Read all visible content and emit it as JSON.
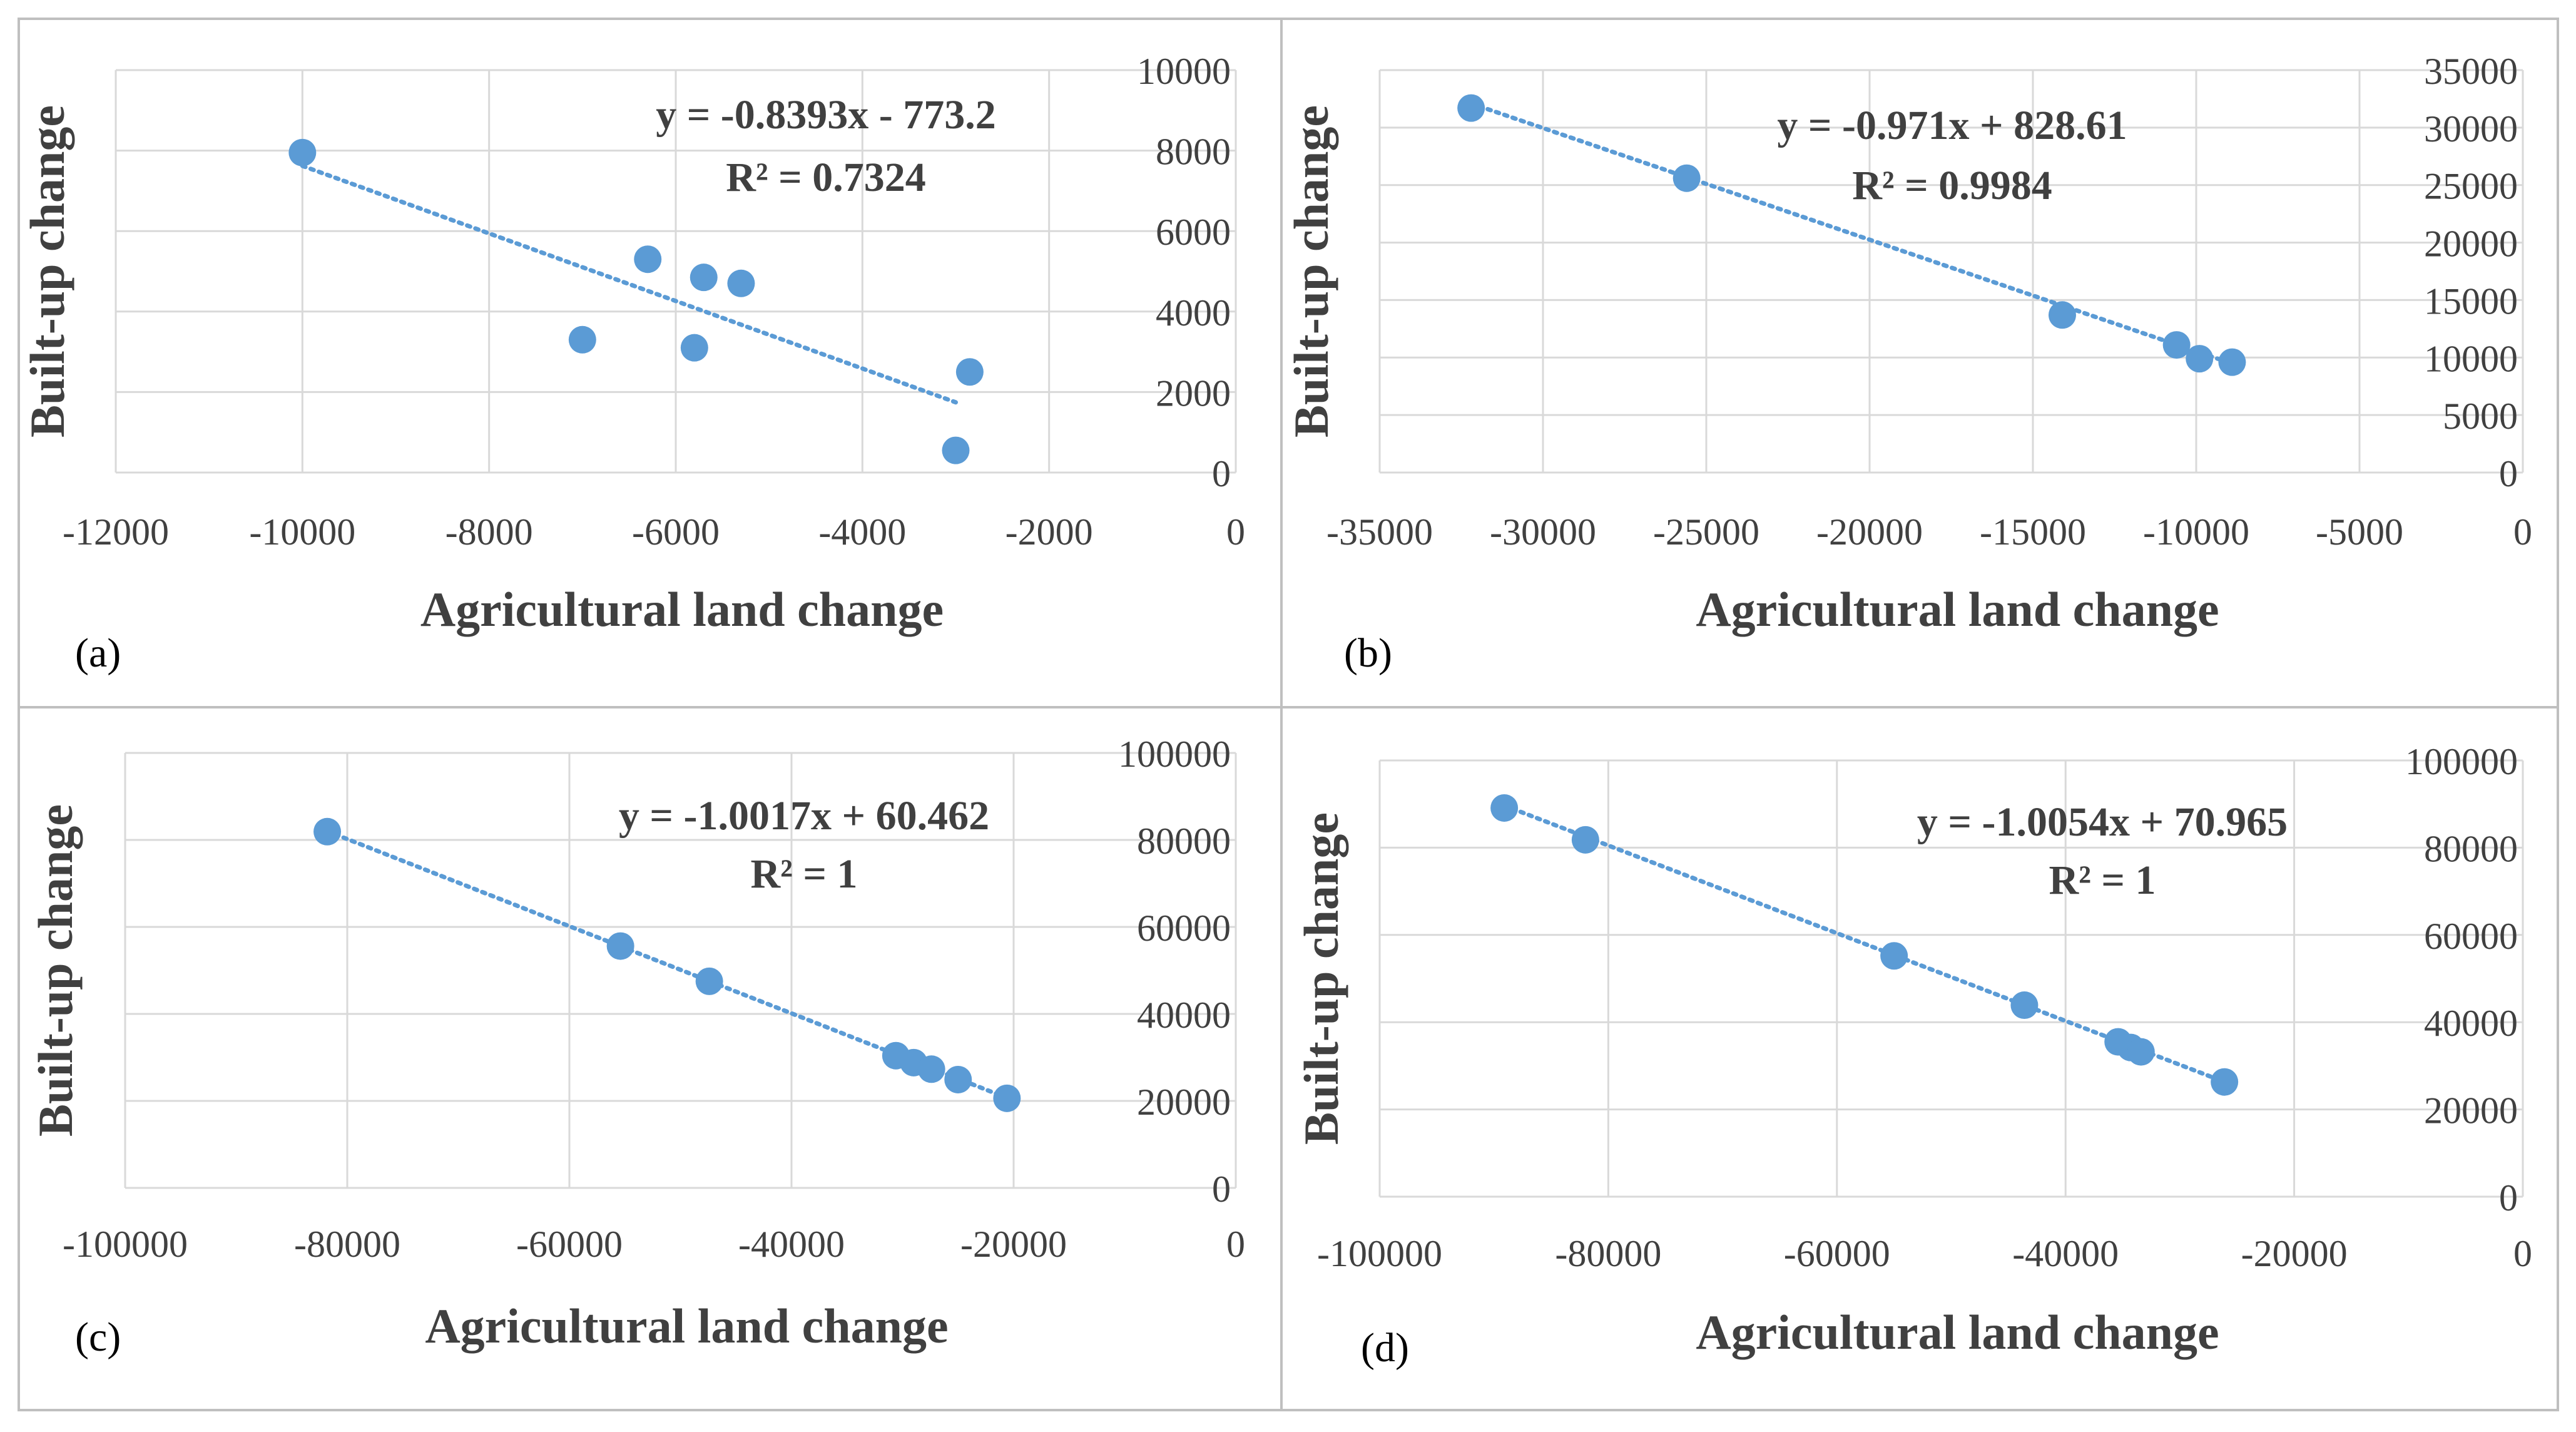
{
  "colors": {
    "marker": "#5b9bd5",
    "trendline": "#5b9bd5",
    "grid": "#d9d9d9",
    "panel_border": "#bfbfbf",
    "text": "#404040"
  },
  "chart_data": [
    {
      "type": "scatter",
      "panel_label": "(a)",
      "xlabel": "Agricultural land change",
      "ylabel": "Built-up change",
      "xlim": [
        -12000,
        0
      ],
      "ylim": [
        0,
        10000
      ],
      "xticks": [
        -12000,
        -10000,
        -8000,
        -6000,
        -4000,
        -2000,
        0
      ],
      "yticks": [
        0,
        2000,
        4000,
        6000,
        8000,
        10000
      ],
      "xtick_labels": [
        "-12000",
        "-10000",
        "-8000",
        "-6000",
        "-4000",
        "-2000",
        "0"
      ],
      "ytick_labels": [
        "0",
        "2000",
        "4000",
        "6000",
        "8000",
        "10000"
      ],
      "x": [
        -10000,
        -7000,
        -6300,
        -5800,
        -5700,
        -5300,
        -3000,
        -2850
      ],
      "y": [
        7950,
        3300,
        5300,
        3100,
        4850,
        4700,
        550,
        2500
      ],
      "trendline": {
        "slope": -0.8393,
        "intercept": -773.2,
        "x_range": [
          -10000,
          -3000
        ]
      },
      "equation": "y = -0.8393x - 773.2",
      "r_squared": "R² = 0.7324"
    },
    {
      "type": "scatter",
      "panel_label": "(b)",
      "xlabel": "Agricultural land change",
      "ylabel": "Built-up change",
      "xlim": [
        -35000,
        0
      ],
      "ylim": [
        0,
        35000
      ],
      "xticks": [
        -35000,
        -30000,
        -25000,
        -20000,
        -15000,
        -10000,
        -5000,
        0
      ],
      "yticks": [
        0,
        5000,
        10000,
        15000,
        20000,
        25000,
        30000,
        35000
      ],
      "xtick_labels": [
        "-35000",
        "-30000",
        "-25000",
        "-20000",
        "-15000",
        "-10000",
        "-5000",
        "0"
      ],
      "ytick_labels": [
        "0",
        "5000",
        "10000",
        "15000",
        "20000",
        "25000",
        "30000",
        "35000"
      ],
      "x": [
        -32200,
        -25600,
        -14100,
        -10600,
        -9900,
        -8900
      ],
      "y": [
        31700,
        25600,
        13700,
        11100,
        9900,
        9600
      ],
      "trendline": {
        "slope": -0.971,
        "intercept": 828.61,
        "x_range": [
          -32200,
          -8900
        ]
      },
      "equation": "y = -0.971x + 828.61",
      "r_squared": "R² = 0.9984"
    },
    {
      "type": "scatter",
      "panel_label": "(c)",
      "xlabel": "Agricultural land change",
      "ylabel": "Built-up change",
      "xlim": [
        -100000,
        0
      ],
      "ylim": [
        0,
        100000
      ],
      "xticks": [
        -100000,
        -80000,
        -60000,
        -40000,
        -20000,
        0
      ],
      "yticks": [
        0,
        20000,
        40000,
        60000,
        80000,
        100000
      ],
      "xtick_labels": [
        "-100000",
        "-80000",
        "-60000",
        "-40000",
        "-20000",
        "0"
      ],
      "ytick_labels": [
        "0",
        "20000",
        "40000",
        "60000",
        "80000",
        "100000"
      ],
      "x": [
        -81800,
        -55400,
        -47400,
        -30600,
        -29000,
        -27400,
        -25000,
        -20600
      ],
      "y": [
        81900,
        55600,
        47500,
        30400,
        28800,
        27300,
        24900,
        20600
      ],
      "trendline": {
        "slope": -1.0017,
        "intercept": 60.462,
        "x_range": [
          -81800,
          -20600
        ]
      },
      "equation": "y = -1.0017x + 60.462",
      "r_squared": "R² = 1"
    },
    {
      "type": "scatter",
      "panel_label": "(d)",
      "xlabel": "Agricultural land change",
      "ylabel": "Built-up change",
      "xlim": [
        -100000,
        0
      ],
      "ylim": [
        0,
        100000
      ],
      "xticks": [
        -100000,
        -80000,
        -60000,
        -40000,
        -20000,
        0
      ],
      "yticks": [
        0,
        20000,
        40000,
        60000,
        80000,
        100000
      ],
      "xtick_labels": [
        "-100000",
        "-80000",
        "-60000",
        "-40000",
        "-20000",
        "0"
      ],
      "ytick_labels": [
        "0",
        "20000",
        "40000",
        "60000",
        "80000",
        "100000"
      ],
      "x": [
        -89100,
        -82000,
        -55000,
        -43600,
        -35400,
        -34300,
        -33400,
        -26100
      ],
      "y": [
        89100,
        81800,
        55200,
        43900,
        35500,
        34200,
        33200,
        26300
      ],
      "trendline": {
        "slope": -1.0054,
        "intercept": 70.965,
        "x_range": [
          -89100,
          -26100
        ]
      },
      "equation": "y = -1.0054x + 70.965",
      "r_squared": "R² = 1"
    }
  ]
}
